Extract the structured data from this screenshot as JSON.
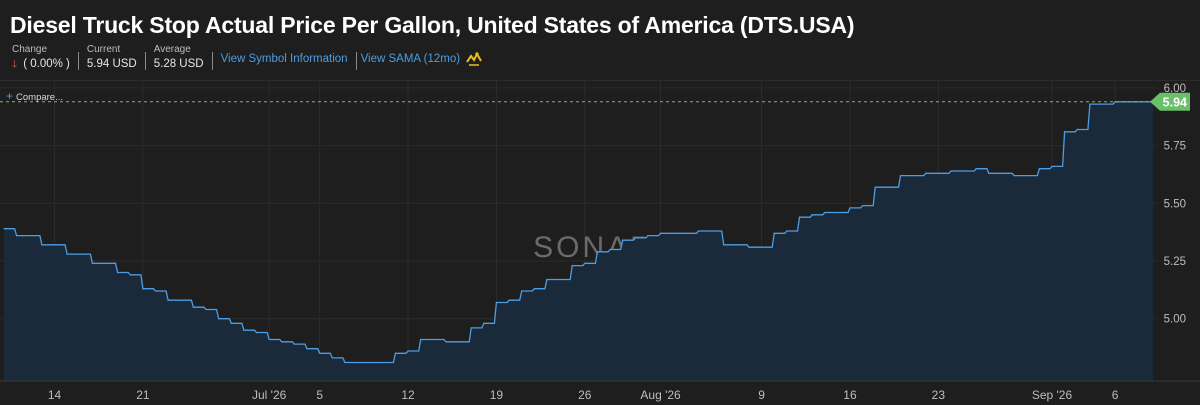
{
  "header": {
    "title": "Diesel Truck Stop Actual Price Per Gallon, United States of America (DTS.USA)",
    "change_label": "Change",
    "change_value": "( 0.00% )",
    "current_label": "Current",
    "current_value": "5.94 USD",
    "average_label": "Average",
    "average_value": "5.28 USD",
    "link_symbol_info": "View Symbol Information",
    "link_sama": "View SAMA (12mo)"
  },
  "compare_label": "Compare...",
  "watermark": "SONAR",
  "current_tag": "5.94",
  "colors": {
    "line": "#4a9ee6",
    "area": "#1b2a3b",
    "tag": "#6abf69",
    "down": "#e25b4e"
  },
  "chart_data": {
    "type": "area",
    "x_tick_labels": [
      "14",
      "21",
      "Jul '26",
      "5",
      "12",
      "19",
      "26",
      "Aug '26",
      "9",
      "16",
      "23",
      "Sep '26",
      "6"
    ],
    "y_tick_labels": [
      "6.00",
      "5.75",
      "5.50",
      "5.25",
      "5.00"
    ],
    "ylim": [
      4.73,
      6.03
    ],
    "x_range": [
      "2026-06-10",
      "2026-09-09"
    ],
    "series": [
      {
        "x": [
          "2026-06-10",
          "2026-06-11",
          "2026-06-12",
          "2026-06-13",
          "2026-06-14",
          "2026-06-15",
          "2026-06-16",
          "2026-06-17",
          "2026-06-18",
          "2026-06-19",
          "2026-06-20",
          "2026-06-21",
          "2026-06-22",
          "2026-06-23",
          "2026-06-24",
          "2026-06-25",
          "2026-06-26",
          "2026-06-27",
          "2026-06-28",
          "2026-06-29",
          "2026-06-30",
          "2026-07-01",
          "2026-07-02",
          "2026-07-03",
          "2026-07-04",
          "2026-07-05",
          "2026-07-06",
          "2026-07-07",
          "2026-07-08",
          "2026-07-09",
          "2026-07-10",
          "2026-07-11",
          "2026-07-12",
          "2026-07-13",
          "2026-07-14",
          "2026-07-15",
          "2026-07-16",
          "2026-07-17",
          "2026-07-18",
          "2026-07-19",
          "2026-07-20",
          "2026-07-21",
          "2026-07-22",
          "2026-07-23",
          "2026-07-24",
          "2026-07-25",
          "2026-07-26",
          "2026-07-27",
          "2026-07-28",
          "2026-07-29",
          "2026-07-30",
          "2026-07-31",
          "2026-08-01",
          "2026-08-02",
          "2026-08-03",
          "2026-08-04",
          "2026-08-05",
          "2026-08-06",
          "2026-08-07",
          "2026-08-08",
          "2026-08-09",
          "2026-08-10",
          "2026-08-11",
          "2026-08-12",
          "2026-08-13",
          "2026-08-14",
          "2026-08-15",
          "2026-08-16",
          "2026-08-17",
          "2026-08-18",
          "2026-08-19",
          "2026-08-20",
          "2026-08-21",
          "2026-08-22",
          "2026-08-23",
          "2026-08-24",
          "2026-08-25",
          "2026-08-26",
          "2026-08-27",
          "2026-08-28",
          "2026-08-29",
          "2026-08-30",
          "2026-08-31",
          "2026-09-01",
          "2026-09-02",
          "2026-09-03",
          "2026-09-04",
          "2026-09-05",
          "2026-09-06",
          "2026-09-07",
          "2026-09-08",
          "2026-09-09"
        ],
        "values": [
          5.39,
          5.36,
          5.36,
          5.32,
          5.32,
          5.28,
          5.28,
          5.24,
          5.24,
          5.2,
          5.19,
          5.13,
          5.12,
          5.08,
          5.08,
          5.05,
          5.04,
          5.0,
          4.98,
          4.95,
          4.94,
          4.91,
          4.9,
          4.89,
          4.87,
          4.85,
          4.83,
          4.81,
          4.81,
          4.81,
          4.81,
          4.85,
          4.86,
          4.91,
          4.91,
          4.9,
          4.9,
          4.96,
          4.98,
          5.07,
          5.08,
          5.12,
          5.13,
          5.17,
          5.17,
          5.23,
          5.24,
          5.29,
          5.3,
          5.34,
          5.35,
          5.36,
          5.37,
          5.37,
          5.37,
          5.38,
          5.38,
          5.32,
          5.32,
          5.31,
          5.31,
          5.37,
          5.38,
          5.44,
          5.45,
          5.46,
          5.46,
          5.48,
          5.49,
          5.57,
          5.57,
          5.62,
          5.62,
          5.63,
          5.63,
          5.64,
          5.64,
          5.65,
          5.63,
          5.63,
          5.62,
          5.62,
          5.65,
          5.66,
          5.81,
          5.82,
          5.93,
          5.93,
          5.94,
          5.94,
          5.94,
          5.94
        ]
      }
    ]
  }
}
